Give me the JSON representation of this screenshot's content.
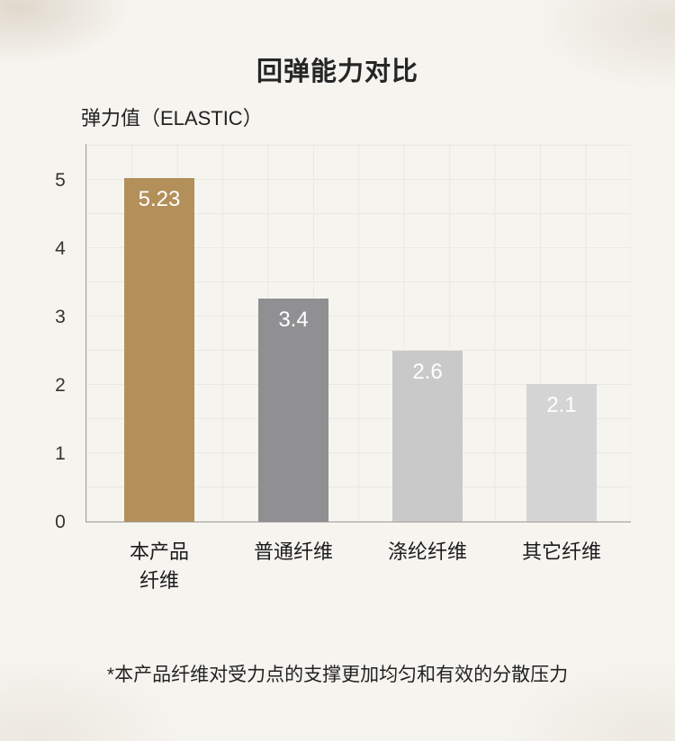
{
  "page": {
    "title": "回弹能力对比",
    "axis_label": "弹力值（ELASTIC）",
    "footnote": "*本产品纤维对受力点的支撑更加均匀和有效的分散压力"
  },
  "colors": {
    "background": "#f6f4ef",
    "axis": "#a0a09d",
    "grid": "#eae8e2",
    "bar_highlight": "#b3905a",
    "bar_dark_gray": "#909092",
    "bar_light_gray": "#c9c9c9",
    "bar_lighter_gray": "#d4d4d4",
    "value_label": "#ffffff"
  },
  "chart_data": {
    "type": "bar",
    "title": "回弹能力对比",
    "xlabel": "",
    "ylabel": "弹力值（ELASTIC）",
    "categories": [
      "本产品纤维",
      "普通纤维",
      "涤纶纤维",
      "其它纤维"
    ],
    "category_lines": [
      [
        "本产品",
        "纤维"
      ],
      [
        "普通纤维"
      ],
      [
        "涤纶纤维"
      ],
      [
        "其它纤维"
      ]
    ],
    "values": [
      5.23,
      3.4,
      2.6,
      2.1
    ],
    "value_labels": [
      "5.23",
      "3.4",
      "2.6",
      "2.1"
    ],
    "bar_colors": [
      "#b3905a",
      "#909092",
      "#c9c9c9",
      "#d4d4d4"
    ],
    "yticks": [
      0,
      1,
      2,
      3,
      4,
      5
    ],
    "ylim": [
      0,
      5.6
    ],
    "grid": true,
    "legend": "none",
    "annotation": "*本产品纤维对受力点的支撑更加均匀和有效的分散压力"
  }
}
